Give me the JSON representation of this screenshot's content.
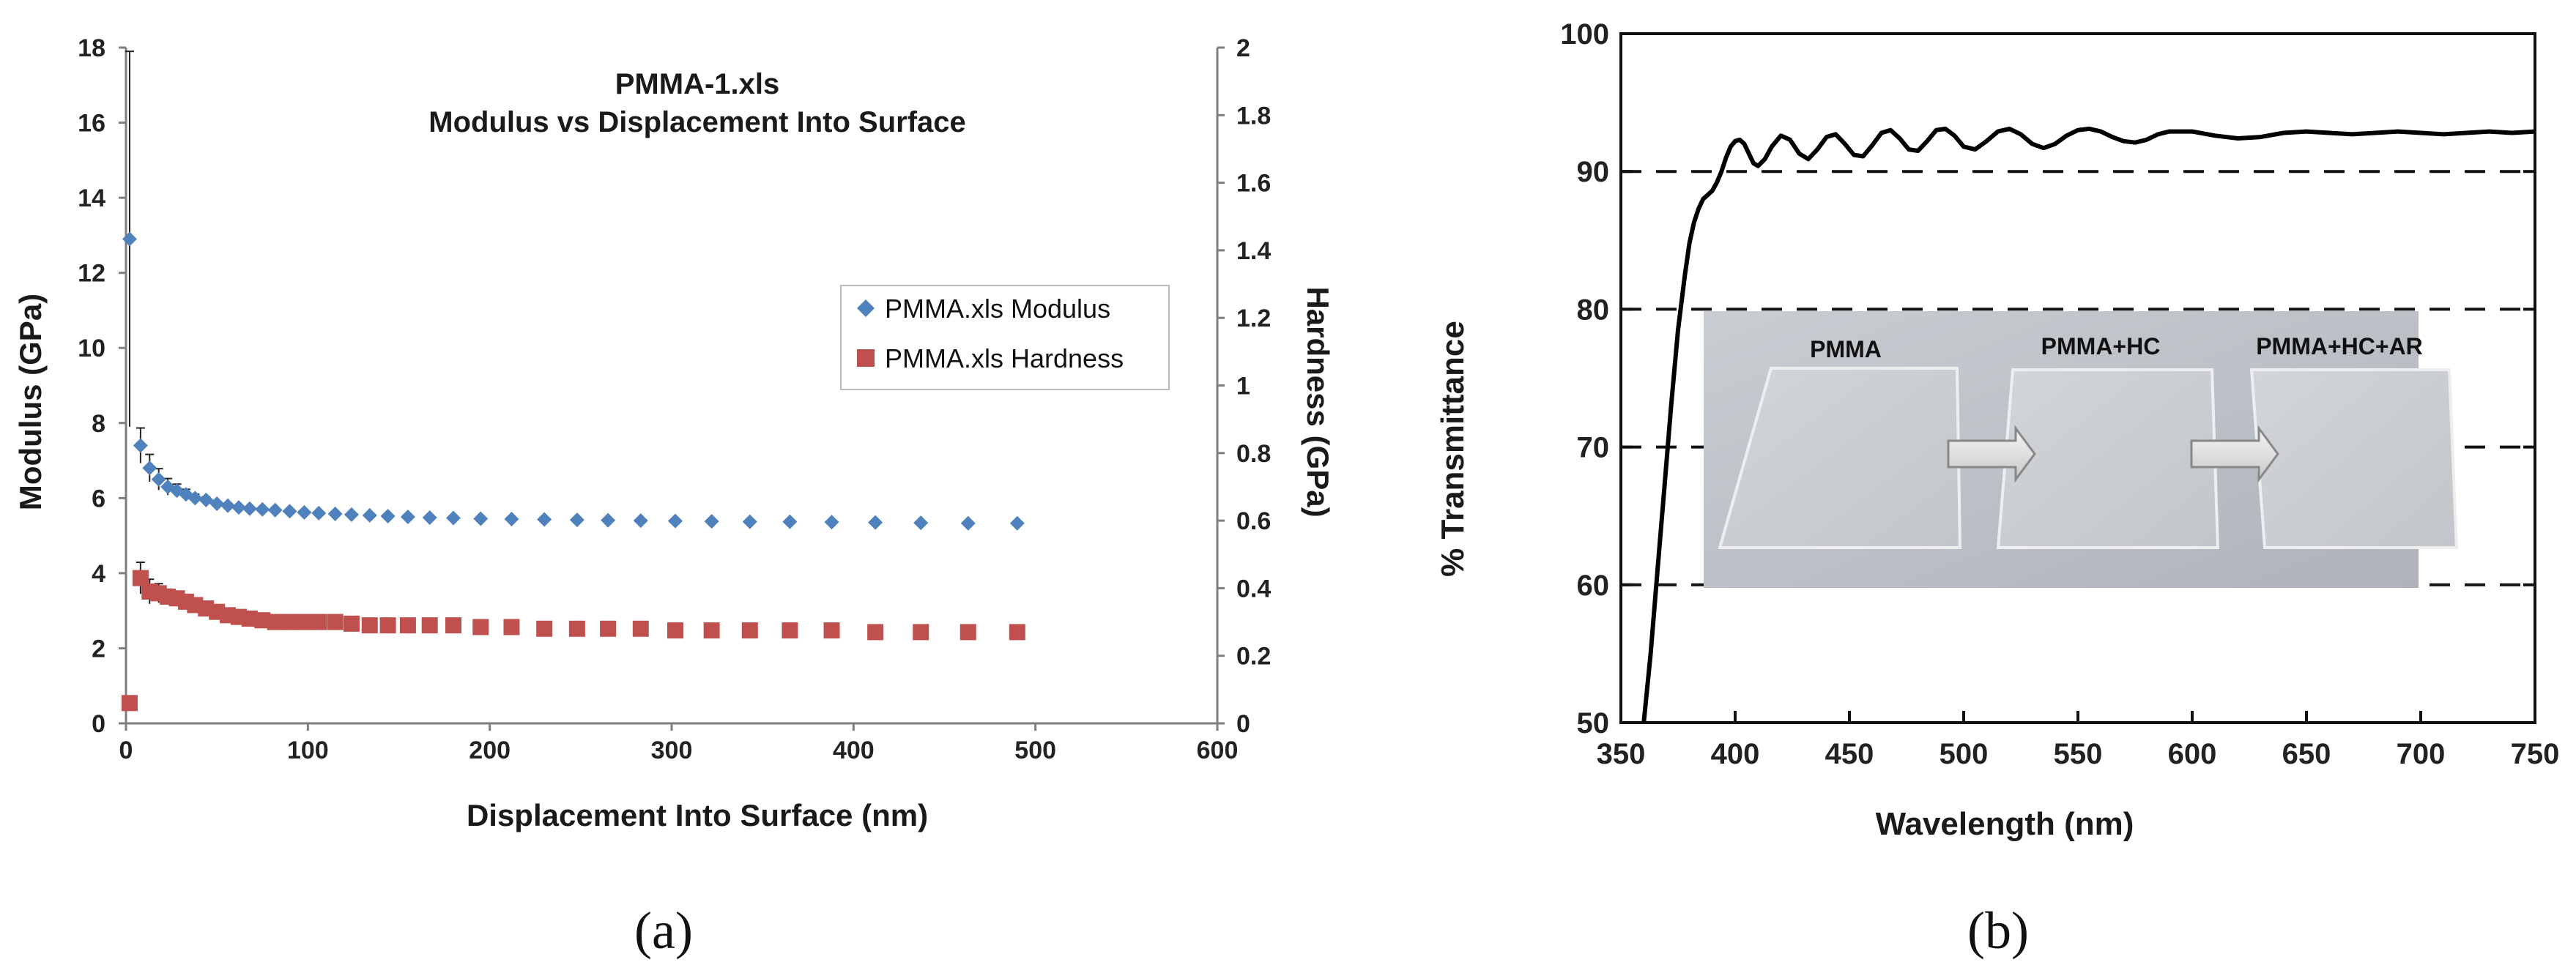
{
  "chart_data": [
    {
      "type": "scatter",
      "panel_label": "(a)",
      "title_line1": "PMMA-1.xls",
      "title_line2": "Modulus vs Displacement Into Surface",
      "xlabel": "Displacement Into Surface (nm)",
      "ylabel": "Modulus (GPa)",
      "y2label": "Hardness (GPa)",
      "xlim": [
        0,
        600
      ],
      "ylim": [
        0,
        18
      ],
      "y2lim": [
        0,
        2
      ],
      "xticks": [
        "0",
        "100",
        "200",
        "300",
        "400",
        "500",
        "600"
      ],
      "yticks": [
        "0",
        "2",
        "4",
        "6",
        "8",
        "10",
        "12",
        "14",
        "16",
        "18"
      ],
      "y2ticks": [
        "0",
        "0.2",
        "0.4",
        "0.6",
        "0.8",
        "1",
        "1.2",
        "1.4",
        "1.6",
        "1.8",
        "2"
      ],
      "legend": [
        "PMMA.xls Modulus",
        "PMMA.xls Hardness"
      ],
      "legend_position": "right",
      "grid": false,
      "series": [
        {
          "name": "PMMA.xls Modulus",
          "axis": "left",
          "color": "#4F81BD",
          "marker": "diamond",
          "x": [
            2,
            8,
            13,
            18,
            23,
            28,
            33,
            38,
            44,
            50,
            56,
            62,
            68,
            75,
            82,
            90,
            98,
            106,
            115,
            124,
            134,
            144,
            155,
            167,
            180,
            195,
            212,
            230,
            248,
            265,
            283,
            302,
            322,
            343,
            365,
            388,
            412,
            437,
            463,
            490
          ],
          "y": [
            12.9,
            7.4,
            6.8,
            6.5,
            6.3,
            6.2,
            6.1,
            6.0,
            5.95,
            5.85,
            5.8,
            5.75,
            5.72,
            5.7,
            5.68,
            5.65,
            5.62,
            5.6,
            5.58,
            5.56,
            5.54,
            5.52,
            5.5,
            5.48,
            5.47,
            5.45,
            5.44,
            5.43,
            5.42,
            5.41,
            5.4,
            5.39,
            5.38,
            5.37,
            5.37,
            5.36,
            5.35,
            5.34,
            5.33,
            5.33
          ]
        },
        {
          "name": "PMMA.xls Hardness",
          "axis": "right",
          "color": "#C0504D",
          "marker": "square",
          "x": [
            2,
            8,
            13,
            18,
            23,
            28,
            33,
            38,
            44,
            50,
            56,
            62,
            68,
            75,
            82,
            90,
            98,
            106,
            115,
            124,
            134,
            144,
            155,
            167,
            180,
            195,
            212,
            230,
            248,
            265,
            283,
            302,
            322,
            343,
            365,
            388,
            412,
            437,
            463,
            490
          ],
          "y": [
            0.06,
            0.43,
            0.39,
            0.385,
            0.375,
            0.37,
            0.36,
            0.35,
            0.34,
            0.33,
            0.32,
            0.315,
            0.31,
            0.305,
            0.3,
            0.3,
            0.3,
            0.3,
            0.3,
            0.295,
            0.29,
            0.29,
            0.29,
            0.29,
            0.29,
            0.285,
            0.285,
            0.28,
            0.28,
            0.28,
            0.28,
            0.275,
            0.275,
            0.275,
            0.275,
            0.275,
            0.27,
            0.27,
            0.27,
            0.27
          ]
        }
      ]
    },
    {
      "type": "line",
      "panel_label": "(b)",
      "xlabel": "Wavelength (nm)",
      "ylabel": "% Transmittance",
      "xlim": [
        350,
        750
      ],
      "ylim": [
        50,
        100
      ],
      "xticks": [
        "350",
        "400",
        "450",
        "500",
        "550",
        "600",
        "650",
        "700",
        "750"
      ],
      "yticks": [
        "50",
        "60",
        "70",
        "80",
        "90",
        "100"
      ],
      "reference_lines": [
        60,
        70,
        80,
        90
      ],
      "inset_labels": [
        "PMMA",
        "PMMA+HC",
        "PMMA+HC+AR"
      ],
      "series": [
        {
          "color": "#000000",
          "x": [
            360,
            363,
            366,
            369,
            372,
            375,
            378,
            380,
            382,
            384,
            386,
            388,
            390,
            392,
            394,
            396,
            398,
            400,
            402,
            404,
            406,
            408,
            410,
            413,
            416,
            420,
            424,
            428,
            432,
            436,
            440,
            444,
            448,
            452,
            456,
            460,
            464,
            468,
            472,
            476,
            480,
            484,
            488,
            492,
            496,
            500,
            505,
            510,
            515,
            520,
            525,
            530,
            535,
            540,
            545,
            550,
            555,
            560,
            565,
            570,
            575,
            580,
            585,
            590,
            600,
            610,
            620,
            630,
            640,
            650,
            660,
            670,
            680,
            690,
            700,
            710,
            720,
            730,
            740,
            750
          ],
          "y": [
            50,
            55,
            61,
            67,
            73,
            78.5,
            82.5,
            84.8,
            86.3,
            87.3,
            88.0,
            88.3,
            88.6,
            89.2,
            90.0,
            91.0,
            91.8,
            92.2,
            92.3,
            92.0,
            91.3,
            90.6,
            90.4,
            90.9,
            91.8,
            92.6,
            92.3,
            91.3,
            90.9,
            91.6,
            92.5,
            92.7,
            92.0,
            91.2,
            91.1,
            91.9,
            92.8,
            93.0,
            92.4,
            91.6,
            91.5,
            92.2,
            93.0,
            93.1,
            92.6,
            91.8,
            91.6,
            92.2,
            92.9,
            93.1,
            92.7,
            92.0,
            91.7,
            92.0,
            92.6,
            93.0,
            93.1,
            92.9,
            92.5,
            92.2,
            92.1,
            92.3,
            92.7,
            92.9,
            92.9,
            92.6,
            92.4,
            92.5,
            92.8,
            92.9,
            92.8,
            92.7,
            92.8,
            92.9,
            92.8,
            92.7,
            92.8,
            92.9,
            92.8,
            92.9
          ]
        }
      ]
    }
  ]
}
